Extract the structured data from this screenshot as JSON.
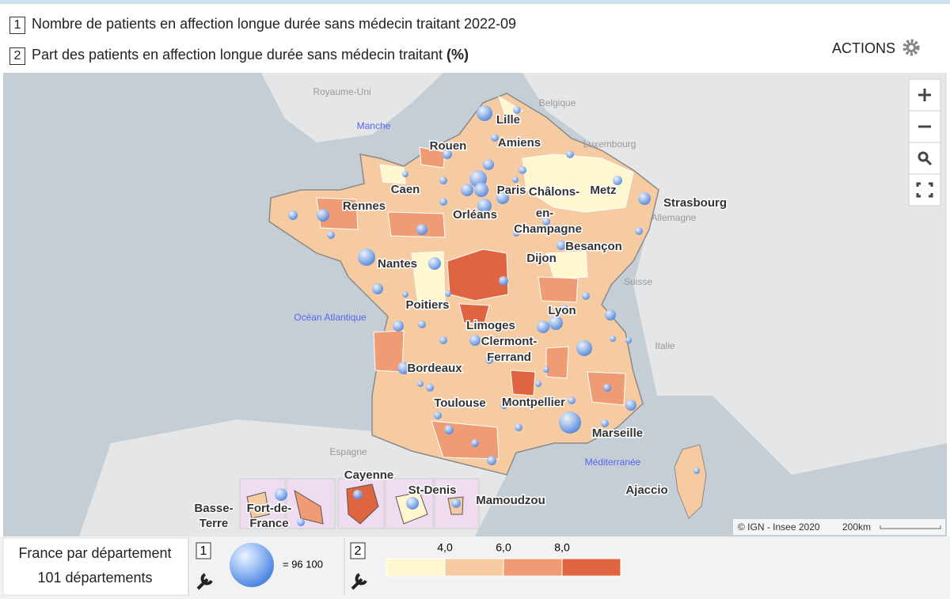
{
  "header": {
    "indicators": [
      {
        "number": "1",
        "label": "Nombre de patients en affection longue durée sans médecin traitant 2022-09"
      },
      {
        "number": "2",
        "label": "Part des patients en affection longue durée sans médecin traitant",
        "unit": "(%)"
      }
    ],
    "actions": "ACTIONS"
  },
  "map": {
    "countries": [
      "Royaume-Uni",
      "Belgique",
      "Luxembourg",
      "Allemagne",
      "Suisse",
      "Italie",
      "Espagne"
    ],
    "seas": [
      "Manche",
      "Océan Atlantique",
      "Méditerranée"
    ],
    "cities": [
      {
        "lines": [
          "Lille"
        ]
      },
      {
        "lines": [
          "Rouen"
        ]
      },
      {
        "lines": [
          "Amiens"
        ]
      },
      {
        "lines": [
          "Caen"
        ]
      },
      {
        "lines": [
          "Paris"
        ]
      },
      {
        "lines": [
          "Châlons-",
          "en-",
          "Champagne"
        ]
      },
      {
        "lines": [
          "Metz"
        ]
      },
      {
        "lines": [
          "Strasbourg"
        ]
      },
      {
        "lines": [
          "Rennes"
        ]
      },
      {
        "lines": [
          "Orléans"
        ]
      },
      {
        "lines": [
          "Besançon"
        ]
      },
      {
        "lines": [
          "Nantes"
        ]
      },
      {
        "lines": [
          "Dijon"
        ]
      },
      {
        "lines": [
          "Poitiers"
        ]
      },
      {
        "lines": [
          "Lyon"
        ]
      },
      {
        "lines": [
          "Limoges"
        ]
      },
      {
        "lines": [
          "Clermont-",
          "Ferrand"
        ]
      },
      {
        "lines": [
          "Bordeaux"
        ]
      },
      {
        "lines": [
          "Toulouse"
        ]
      },
      {
        "lines": [
          "Montpellier"
        ]
      },
      {
        "lines": [
          "Marseille"
        ]
      },
      {
        "lines": [
          "Cayenne"
        ]
      },
      {
        "lines": [
          "St-Denis"
        ]
      },
      {
        "lines": [
          "Mamoudzou"
        ]
      },
      {
        "lines": [
          "Ajaccio"
        ]
      },
      {
        "lines": [
          "Basse-",
          "Terre"
        ]
      },
      {
        "lines": [
          "Fort-de-",
          "France"
        ]
      }
    ],
    "attribution": "© IGN - Insee 2020",
    "scale": "200km"
  },
  "legend": {
    "territory": "France par département",
    "count": "101 départements",
    "bubble": {
      "number": "1",
      "label": "= 96 100"
    },
    "color_scale": {
      "number": "2",
      "breaks": [
        "4,0",
        "6,0",
        "8,0"
      ],
      "colors": [
        "#fff7cf",
        "#f7cba2",
        "#ef9b74",
        "#df6440"
      ]
    }
  }
}
